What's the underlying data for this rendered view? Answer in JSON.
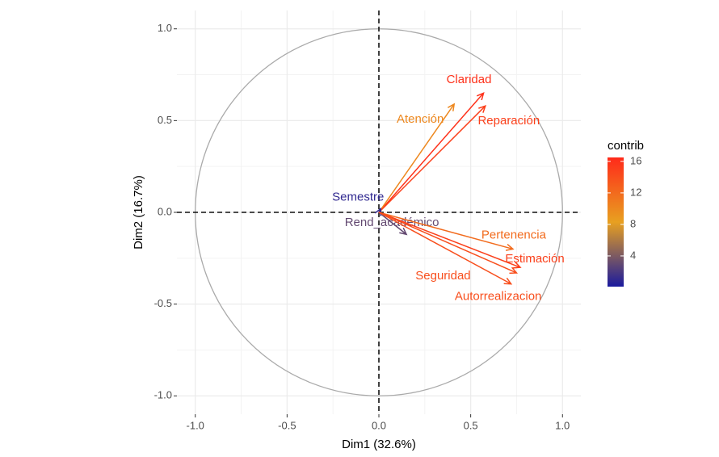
{
  "chart_data": {
    "type": "vector",
    "xlabel": "Dim1 (32.6%)",
    "ylabel": "Dim2 (16.7%)",
    "xlim": [
      -1.1,
      1.1
    ],
    "ylim": [
      -1.1,
      1.1
    ],
    "xticks": [
      {
        "value": -1,
        "label": "-1.0"
      },
      {
        "value": -0.5,
        "label": "-0.5"
      },
      {
        "value": 0,
        "label": "0.0"
      },
      {
        "value": 0.5,
        "label": "0.5"
      },
      {
        "value": 1,
        "label": "1.0"
      }
    ],
    "yticks": [
      {
        "value": -1,
        "label": "-1.0"
      },
      {
        "value": -0.5,
        "label": "-0.5"
      },
      {
        "value": 0,
        "label": "0.0"
      },
      {
        "value": 0.5,
        "label": "0.5"
      },
      {
        "value": 1,
        "label": "1.0"
      }
    ],
    "xminor": [
      -0.75,
      -0.25,
      0.25,
      0.75
    ],
    "yminor": [
      -0.75,
      -0.25,
      0.25,
      0.75
    ],
    "grid": true,
    "variables": [
      {
        "name": "Claridad",
        "x": 0.57,
        "y": 0.65,
        "contrib": 16
      },
      {
        "name": "Atención",
        "x": 0.41,
        "y": 0.59,
        "contrib": 10
      },
      {
        "name": "Reparación",
        "x": 0.58,
        "y": 0.58,
        "contrib": 15
      },
      {
        "name": "Semestre",
        "x": 0.01,
        "y": 0.02,
        "contrib": 1
      },
      {
        "name": "Rend_académico",
        "x": 0.15,
        "y": -0.12,
        "contrib": 3
      },
      {
        "name": "Pertenencia",
        "x": 0.73,
        "y": -0.2,
        "contrib": 12
      },
      {
        "name": "Estimación",
        "x": 0.77,
        "y": -0.3,
        "contrib": 15
      },
      {
        "name": "Seguridad",
        "x": 0.75,
        "y": -0.33,
        "contrib": 14
      },
      {
        "name": "Autorrealizacion",
        "x": 0.72,
        "y": -0.39,
        "contrib": 14
      }
    ],
    "legend": {
      "title": "contrib",
      "lim": [
        0.1,
        16.5
      ],
      "ticks": [
        4,
        8,
        12,
        16
      ],
      "colors": [
        "#1a1a9e",
        "#e8a020",
        "#ff2a1a"
      ]
    }
  }
}
